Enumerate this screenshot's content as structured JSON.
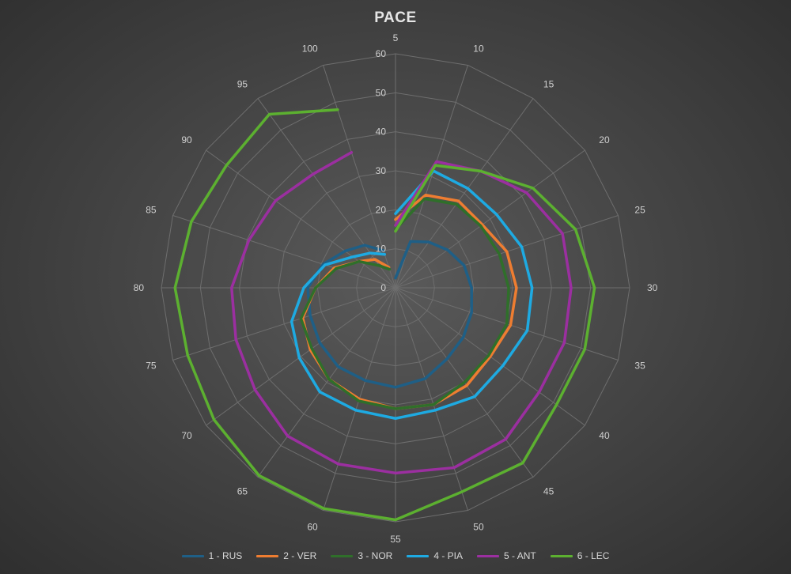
{
  "chart_data": {
    "type": "radar",
    "title": "PACE",
    "categories": [
      "5",
      "10",
      "15",
      "20",
      "25",
      "30",
      "35",
      "40",
      "45",
      "50",
      "55",
      "60",
      "65",
      "70",
      "75",
      "80",
      "85",
      "90",
      "95",
      "100"
    ],
    "radial_axis": {
      "min": 0,
      "max": 60,
      "ticks": [
        "0",
        "10",
        "20",
        "30",
        "40",
        "50",
        "60"
      ]
    },
    "grid": true,
    "legend_position": "bottom",
    "series": [
      {
        "name": "1 - RUS",
        "color": "#1f5f86",
        "values": [
          null,
          null,
          null,
          null,
          null,
          null,
          null,
          null,
          null,
          null,
          null,
          null,
          null,
          null,
          null,
          null,
          null,
          null,
          null,
          null
        ]
      },
      {
        "name": "2 - VER",
        "color": "#ee7d31",
        "values": [
          null,
          null,
          null,
          null,
          null,
          null,
          null,
          null,
          null,
          null,
          null,
          null,
          null,
          null,
          null,
          null,
          null,
          null,
          null,
          null
        ]
      },
      {
        "name": "3 - NOR",
        "color": "#2f6f2a",
        "values": [
          null,
          null,
          null,
          null,
          null,
          null,
          null,
          null,
          null,
          null,
          null,
          null,
          null,
          null,
          null,
          null,
          null,
          null,
          null,
          null
        ]
      },
      {
        "name": "4 - PIA",
        "color": "#1eaae2",
        "values": [
          null,
          null,
          null,
          null,
          null,
          null,
          null,
          null,
          null,
          null,
          null,
          null,
          null,
          null,
          null,
          null,
          null,
          null,
          null,
          null
        ]
      },
      {
        "name": "5 - ANT",
        "color": "#9b2fa0",
        "values": [
          null,
          null,
          null,
          null,
          null,
          null,
          null,
          null,
          null,
          null,
          null,
          null,
          null,
          null,
          null,
          null,
          null,
          null,
          null,
          null
        ]
      },
      {
        "name": "6 - LEC",
        "color": "#5cb030",
        "values": [
          null,
          null,
          null,
          null,
          null,
          null,
          null,
          null,
          null,
          null,
          null,
          null,
          null,
          null,
          null,
          null,
          null,
          null,
          null,
          null
        ]
      }
    ]
  }
}
